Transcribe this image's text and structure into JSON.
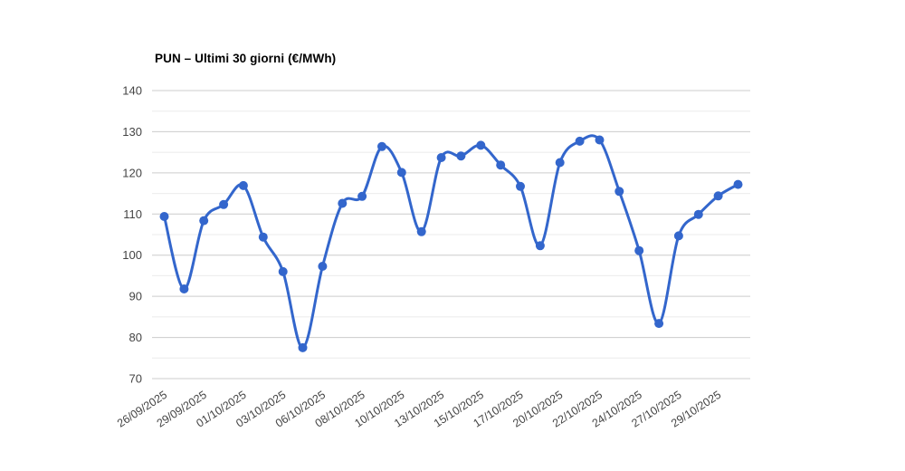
{
  "chart_data": {
    "type": "line",
    "title": "PUN – Ultimi 30 giorni (€/MWh)",
    "xlabel": "",
    "ylabel": "",
    "ylim": [
      70,
      140
    ],
    "y_ticks": [
      70,
      80,
      90,
      100,
      110,
      120,
      130,
      140
    ],
    "minor_grid_step": 5,
    "grid": true,
    "legend_position": "none",
    "x_tick_labels": [
      "26/09/2025",
      "29/09/2025",
      "01/10/2025",
      "03/10/2025",
      "06/10/2025",
      "08/10/2025",
      "10/10/2025",
      "13/10/2025",
      "15/10/2025",
      "17/10/2025",
      "20/10/2025",
      "22/10/2025",
      "24/10/2025",
      "27/10/2025",
      "29/10/2025"
    ],
    "x_tick_positions": [
      0,
      2,
      4,
      6,
      8,
      10,
      12,
      14,
      16,
      18,
      20,
      22,
      24,
      26,
      28
    ],
    "series": [
      {
        "name": "PUN",
        "values": [
          109.4,
          91.8,
          108.4,
          112.3,
          116.9,
          104.4,
          96.0,
          77.5,
          97.3,
          112.6,
          114.3,
          126.4,
          120.1,
          105.7,
          123.7,
          124.1,
          126.7,
          121.9,
          116.7,
          102.3,
          122.5,
          127.7,
          128.0,
          115.5,
          101.1,
          83.4,
          104.7,
          109.9,
          114.4,
          117.2
        ]
      }
    ],
    "colors": {
      "line": "#3366cc",
      "marker": "#3366cc",
      "grid_major": "#cccccc",
      "grid_minor": "#ebebeb",
      "axis_label": "#444444",
      "title": "#000000",
      "background": "#ffffff"
    }
  }
}
